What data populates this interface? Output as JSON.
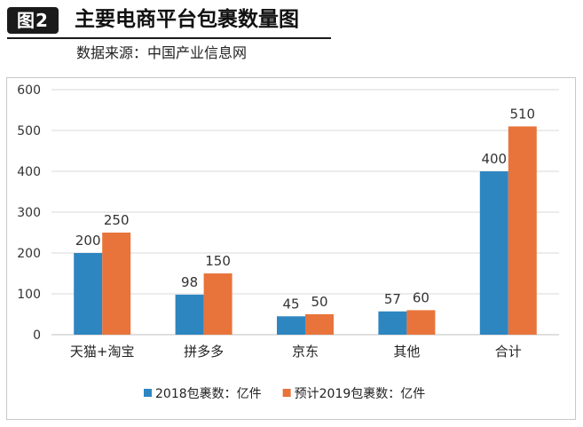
{
  "header": {
    "badge": "图2",
    "title": "主要电商平台包裹数量图",
    "source": "数据来源：中国产业信息网"
  },
  "chart_data": {
    "type": "bar",
    "categories": [
      "天猫+淘宝",
      "拼多多",
      "京东",
      "其他",
      "合计"
    ],
    "series": [
      {
        "name": "2018包裹数：亿件",
        "color": "#2e86c1",
        "values": [
          200,
          98,
          45,
          57,
          400
        ]
      },
      {
        "name": "预计2019包裹数：亿件",
        "color": "#e8743b",
        "values": [
          250,
          150,
          50,
          60,
          510
        ]
      }
    ],
    "ylim": [
      0,
      600
    ],
    "yticks": [
      0,
      100,
      200,
      300,
      400,
      500,
      600
    ],
    "grid": true,
    "legend": "bottom"
  }
}
